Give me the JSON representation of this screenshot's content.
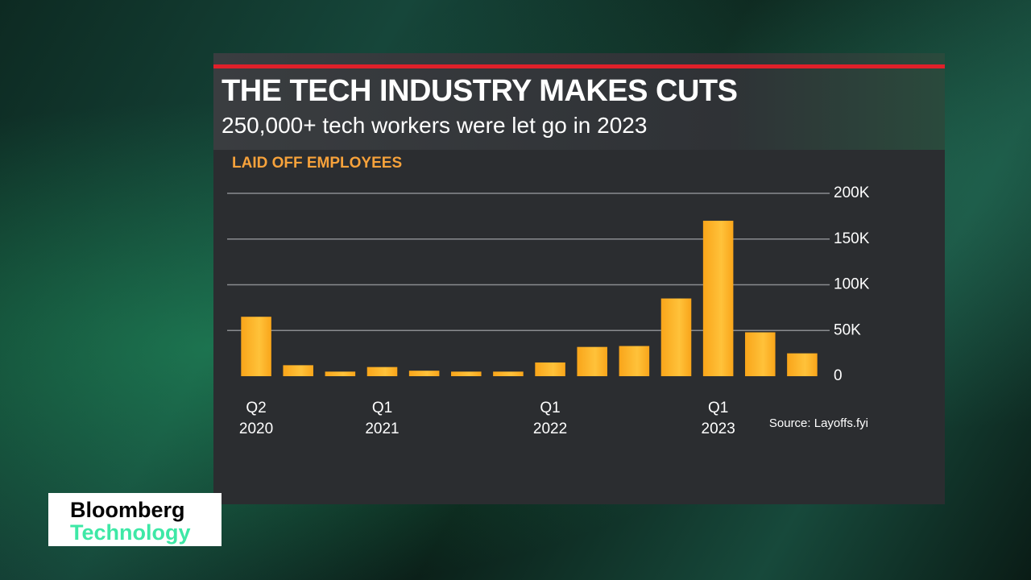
{
  "chart_data": {
    "type": "bar",
    "title": "THE TECH INDUSTRY MAKES CUTS",
    "subtitle": "250,000+ tech workers were let go in 2023",
    "y_label": "LAID OFF EMPLOYEES",
    "source": "Source: Layoffs.fyi",
    "categories": [
      "Q2 2020",
      null,
      null,
      "Q1 2021",
      null,
      null,
      null,
      "Q1 2022",
      null,
      null,
      null,
      "Q1 2023",
      null,
      null
    ],
    "values": [
      65000,
      12000,
      5000,
      10000,
      6000,
      5000,
      5000,
      15000,
      32000,
      33000,
      85000,
      170000,
      48000,
      25000
    ],
    "color": "#f9a51a",
    "ylim": [
      0,
      210000
    ],
    "yticks": [
      0,
      {
        "value": 50000,
        "label": "50K"
      },
      {
        "value": 100000,
        "label": "100K"
      },
      {
        "value": 150000,
        "label": "150K"
      },
      {
        "value": 200000,
        "label": "200K"
      }
    ],
    "grid": true
  },
  "brand": {
    "line1": "Bloomberg",
    "line2": "Technology"
  }
}
